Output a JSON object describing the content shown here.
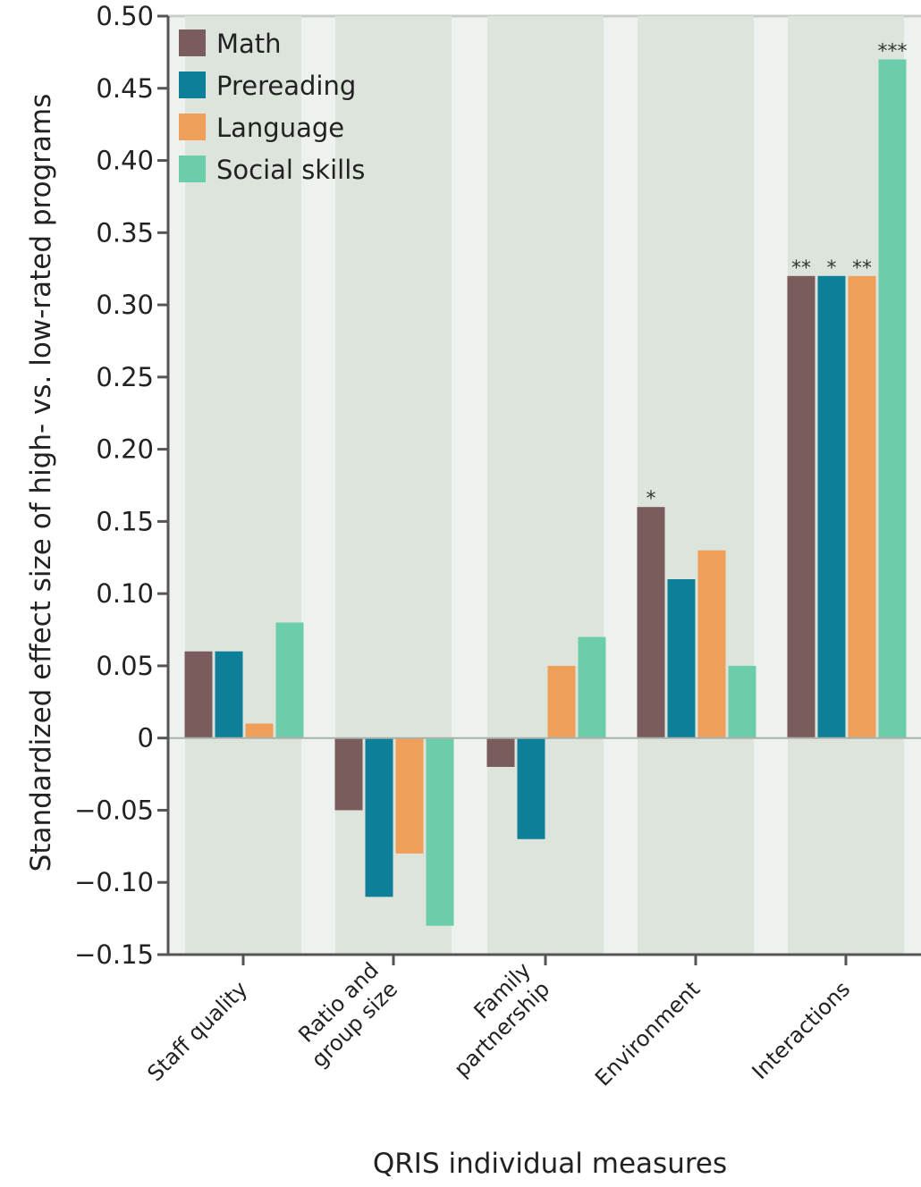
{
  "chart_data": {
    "type": "bar",
    "title": "",
    "xlabel": "QRIS individual measures",
    "ylabel": "Standardized effect size of high- vs. low-rated programs",
    "ylim": [
      -0.15,
      0.5
    ],
    "yticks": [
      {
        "value": 0.5,
        "label": "0.50"
      },
      {
        "value": 0.45,
        "label": "0.45"
      },
      {
        "value": 0.4,
        "label": "0.40"
      },
      {
        "value": 0.35,
        "label": "0.35"
      },
      {
        "value": 0.3,
        "label": "0.30"
      },
      {
        "value": 0.25,
        "label": "0.25"
      },
      {
        "value": 0.2,
        "label": "0.20"
      },
      {
        "value": 0.15,
        "label": "0.15"
      },
      {
        "value": 0.1,
        "label": "0.10"
      },
      {
        "value": 0.05,
        "label": "0.05"
      },
      {
        "value": 0,
        "label": "0"
      },
      {
        "value": -0.05,
        "label": "−0.05"
      },
      {
        "value": -0.1,
        "label": "−0.10"
      },
      {
        "value": -0.15,
        "label": "−0.15"
      }
    ],
    "categories": [
      [
        "Staff quality"
      ],
      [
        "Ratio and",
        "group size"
      ],
      [
        "Family",
        "partnership"
      ],
      [
        "Environment"
      ],
      [
        "Interactions"
      ]
    ],
    "series": [
      {
        "name": "Math",
        "color": "#7a5c5c",
        "values": [
          0.06,
          -0.05,
          -0.02,
          0.16,
          0.32
        ],
        "annotations": [
          "",
          "",
          "",
          "*",
          "**"
        ]
      },
      {
        "name": "Prereading",
        "color": "#0e7f99",
        "values": [
          0.06,
          -0.11,
          -0.07,
          0.11,
          0.32
        ],
        "annotations": [
          "",
          "",
          "",
          "",
          "*"
        ]
      },
      {
        "name": "Language",
        "color": "#ef9f5a",
        "values": [
          0.01,
          -0.08,
          0.05,
          0.13,
          0.32
        ],
        "annotations": [
          "",
          "",
          "",
          "",
          "**"
        ]
      },
      {
        "name": "Social skills",
        "color": "#6ccdaa",
        "values": [
          0.08,
          -0.13,
          0.07,
          0.05,
          0.47
        ],
        "annotations": [
          "",
          "",
          "",
          "",
          "***"
        ]
      }
    ],
    "grid": false,
    "legend_position": "top-left",
    "colors": {
      "panel_background": "#eef2ee",
      "group_band": "#dde4dc",
      "axis": "#555555",
      "text": "#222222"
    }
  }
}
